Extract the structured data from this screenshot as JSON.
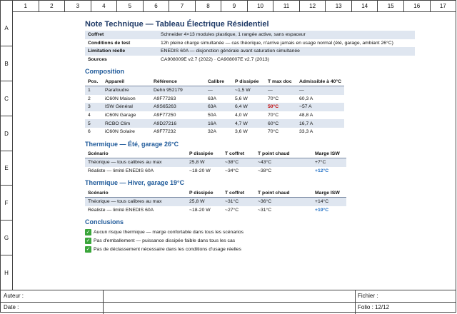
{
  "columns": [
    "1",
    "2",
    "3",
    "4",
    "5",
    "6",
    "7",
    "8",
    "9",
    "10",
    "11",
    "12",
    "13",
    "14",
    "15",
    "16",
    "17"
  ],
  "rows": [
    "A",
    "B",
    "C",
    "D",
    "E",
    "F",
    "G",
    "H"
  ],
  "title": "Note Technique — Tableau Électrique Résidentiel",
  "meta": [
    {
      "k": "Coffret",
      "v": "Schneider 4×13 modules plastique, 1 rangée active, sans espaceur"
    },
    {
      "k": "Conditions de test",
      "v": "12h pleine charge simultanée — cas théorique, n'arrive jamais en usage normal (été, garage, ambiant 26°C)"
    },
    {
      "k": "Limitation réelle",
      "v": "ENEDIS 60A — disjonction générale avant saturation simultanée"
    },
    {
      "k": "Sources",
      "v": "CA908009E v2.7 (2022) · CA908007E v2.7 (2013)"
    }
  ],
  "composition": {
    "title": "Composition",
    "headers": [
      "Pos.",
      "Appareil",
      "Référence",
      "Calibre",
      "P dissipée",
      "T max doc",
      "Admissible à 40°C"
    ],
    "rows": [
      [
        "1",
        "Parafoudre",
        "Dehn 952179",
        "—",
        "~1,5 W",
        "—",
        "—"
      ],
      [
        "2",
        "iC60N Maison",
        "A9F77263",
        "63A",
        "5,6 W",
        "70°C",
        "60,3 A"
      ],
      [
        "3",
        "ISW Général",
        "A9S65263",
        "63A",
        "6,4 W",
        "50°C",
        "~57 A"
      ],
      [
        "4",
        "iC60N Garage",
        "A9F77250",
        "50A",
        "4,0 W",
        "70°C",
        "48,8 A"
      ],
      [
        "5",
        "RCBO Clim",
        "A9D27216",
        "16A",
        "4,7 W",
        "60°C",
        "16,7 A"
      ],
      [
        "6",
        "iC60N Solaire",
        "A9F77232",
        "32A",
        "3,6 W",
        "70°C",
        "33,3 A"
      ]
    ]
  },
  "summer": {
    "title": "Thermique — Été, garage 26°C",
    "headers": [
      "Scénario",
      "P dissipée",
      "T coffret",
      "T point chaud",
      "Marge ISW"
    ],
    "rows": [
      [
        "Théorique — tous calibres au max",
        "25,8 W",
        "~38°C",
        "~43°C",
        "+7°C"
      ],
      [
        "Réaliste — limité ENEDIS 60A",
        "~18-20 W",
        "~34°C",
        "~38°C",
        "+12°C"
      ]
    ]
  },
  "winter": {
    "title": "Thermique — Hiver, garage 19°C",
    "headers": [
      "Scénario",
      "P dissipée",
      "T coffret",
      "T point chaud",
      "Marge ISW"
    ],
    "rows": [
      [
        "Théorique — tous calibres au max",
        "25,8 W",
        "~31°C",
        "~36°C",
        "+14°C"
      ],
      [
        "Réaliste — limité ENEDIS 60A",
        "~18-20 W",
        "~27°C",
        "~31°C",
        "+19°C"
      ]
    ]
  },
  "conclusions": {
    "title": "Conclusions",
    "items": [
      "Aucun risque thermique — marge confortable dans tous les scénarios",
      "Pas d'emballement — puissance dissipée faible dans tous les cas",
      "Pas de déclassement nécessaire dans les conditions d'usage réelles"
    ]
  },
  "footer": {
    "author_label": "Auteur :",
    "date_label": "Date :",
    "file_label": "Fichier :",
    "folio_label": "Folio : 12/12"
  }
}
